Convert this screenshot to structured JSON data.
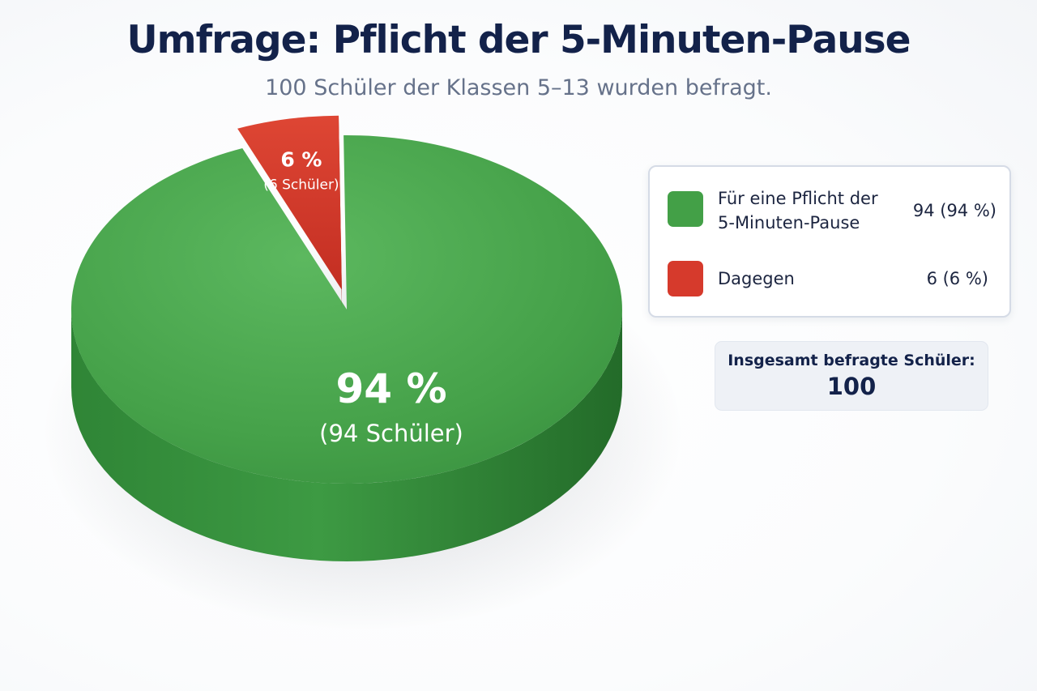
{
  "header": {
    "title": "Umfrage: Pflicht der 5-Minuten-Pause",
    "subtitle": "100 Schüler der Klassen 5–13  wurden befragt."
  },
  "chart_data": {
    "type": "pie",
    "slices": [
      {
        "name": "Für eine Pflicht der 5-Minuten-Pause",
        "name_line1": "Für eine Pflicht der",
        "name_line2": "5-Minuten-Pause",
        "value": 94,
        "percent_label": "94 %",
        "count_label": "(94 Schüler)",
        "legend_value": "94  (94 %)",
        "color": "#43a047"
      },
      {
        "name": "Dagegen",
        "value": 6,
        "percent_label": "6 %",
        "count_label": "(6 Schüler)",
        "legend_value": "6  (6 %)",
        "color": "#d63a2c"
      }
    ],
    "legend_position": "right"
  },
  "total": {
    "label": "Insgesamt befragte Schüler:",
    "value": "100"
  }
}
